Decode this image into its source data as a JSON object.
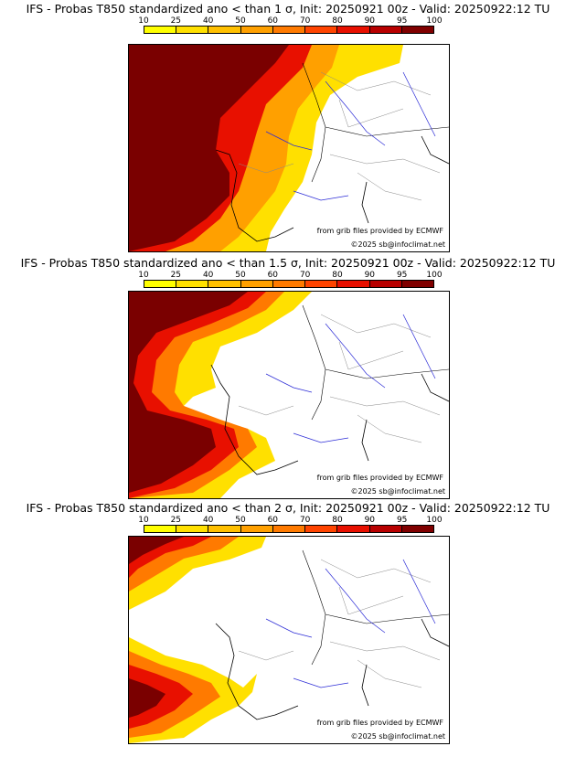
{
  "legend": {
    "ticks": [
      "10",
      "25",
      "40",
      "50",
      "60",
      "70",
      "80",
      "90",
      "95",
      "100"
    ],
    "colors": [
      "#ffff00",
      "#ffe000",
      "#ffc000",
      "#ffa000",
      "#ff7a00",
      "#ff4400",
      "#e81000",
      "#b80000",
      "#800000"
    ]
  },
  "panels": [
    {
      "title": "IFS - Probas T850  standardized ano < than 1 σ, Init: 20250921 00z - Valid: 20250922:12 TU",
      "source_credit": "from grib files provided by ECMWF",
      "copyright": "©2025 sb@infoclimat.net"
    },
    {
      "title": "IFS - Probas T850  standardized ano < than 1.5 σ, Init: 20250921 00z - Valid: 20250922:12 TU",
      "source_credit": "from grib files provided by ECMWF",
      "copyright": "©2025 sb@infoclimat.net"
    },
    {
      "title": "IFS - Probas T850  standardized ano < than 2 σ, Init: 20250921 00z - Valid: 20250922:12 TU",
      "source_credit": "from grib files provided by ECMWF",
      "copyright": "©2025 sb@infoclimat.net"
    }
  ]
}
